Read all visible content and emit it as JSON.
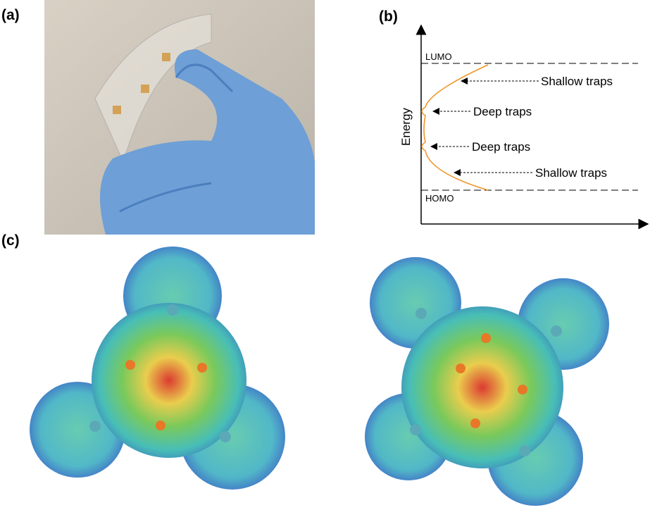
{
  "panel_labels": [
    "(a)",
    "(b)",
    "(c)"
  ],
  "diagram": {
    "axis_label": "Energy",
    "levels": [
      "LUMO",
      "HOMO"
    ],
    "annotations": [
      "Shallow traps",
      "Deep traps",
      "Deep traps",
      "Shallow traps"
    ]
  }
}
